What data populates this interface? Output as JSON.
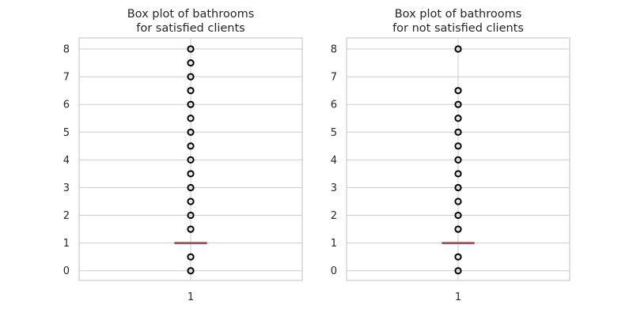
{
  "chart_data": [
    {
      "type": "box",
      "title": [
        "Box plot of bathrooms",
        "for satisfied clients"
      ],
      "xlabel": "",
      "ylabel": "",
      "categories": [
        "1"
      ],
      "ylim": [
        -0.35,
        8.4
      ],
      "yticks": [
        "0",
        "1",
        "2",
        "3",
        "4",
        "5",
        "6",
        "7",
        "8"
      ],
      "grid": true,
      "box": {
        "q1": 1,
        "median": 1,
        "q3": 1,
        "whisker_low": 1,
        "whisker_high": 1
      },
      "outliers": [
        0,
        0.5,
        1.5,
        2,
        2.5,
        3,
        3.5,
        4,
        4.5,
        5,
        5.5,
        6,
        6.5,
        7,
        7.5,
        8
      ]
    },
    {
      "type": "box",
      "title": [
        "Box plot of bathrooms",
        "for not satisfied clients"
      ],
      "xlabel": "",
      "ylabel": "",
      "categories": [
        "1"
      ],
      "ylim": [
        -0.35,
        8.4
      ],
      "yticks": [
        "0",
        "1",
        "2",
        "3",
        "4",
        "5",
        "6",
        "7",
        "8"
      ],
      "grid": true,
      "box": {
        "q1": 1,
        "median": 1,
        "q3": 1,
        "whisker_low": 1,
        "whisker_high": 1
      },
      "outliers": [
        0,
        0.5,
        1.5,
        2,
        2.5,
        3,
        3.5,
        4,
        4.5,
        5,
        5.5,
        6,
        6.5,
        8
      ]
    }
  ],
  "colors": {
    "grid": "#cccccc",
    "frame": "#cccccc",
    "median": "#c44e52",
    "box": "#333333",
    "outlier": "#000000"
  }
}
